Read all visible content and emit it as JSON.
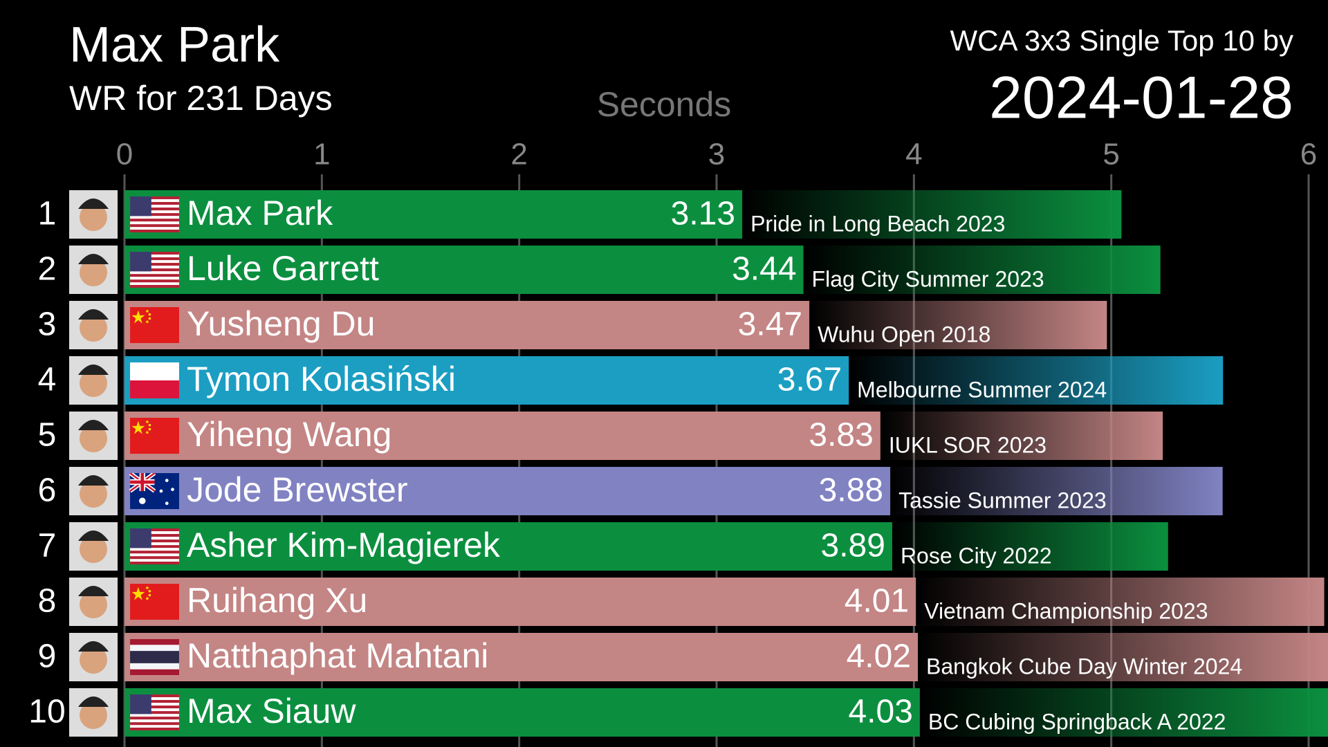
{
  "chart_data": {
    "type": "bar",
    "orientation": "horizontal",
    "title": "Max Park",
    "subtitle": "WR for 231 Days",
    "header": "WCA 3x3 Single Top 10 by",
    "date": "2024-01-28",
    "x_label": "Seconds",
    "xlim": [
      0,
      6
    ],
    "xticks": [
      0,
      1,
      2,
      3,
      4,
      5,
      6
    ],
    "grid": true,
    "ranks": [
      1,
      2,
      3,
      4,
      5,
      6,
      7,
      8,
      9,
      10
    ],
    "categories": [
      "Max Park",
      "Luke Garrett",
      "Yusheng Du",
      "Tymon Kolasiński",
      "Yiheng Wang",
      "Jode Brewster",
      "Asher Kim-Magierek",
      "Ruihang Xu",
      "Natthaphat Mahtani",
      "Max Siauw"
    ],
    "values": [
      3.13,
      3.44,
      3.47,
      3.67,
      3.83,
      3.88,
      3.89,
      4.01,
      4.02,
      4.03
    ],
    "competitions": [
      "Pride in Long Beach 2023",
      "Flag City Summer 2023",
      "Wuhu Open 2018",
      "Melbourne Summer 2024",
      "IUKL SOR 2023",
      "Tassie Summer 2023",
      "Rose City 2022",
      "Vietnam Championship 2023",
      "Bangkok Cube Day Winter 2024",
      "BC Cubing Springback A 2022"
    ],
    "colors": [
      "#0b8f3f",
      "#0b8f3f",
      "#c48585",
      "#1b9ec2",
      "#c48585",
      "#8082c2",
      "#0b8f3f",
      "#c48585",
      "#c48585",
      "#0b8f3f"
    ]
  }
}
